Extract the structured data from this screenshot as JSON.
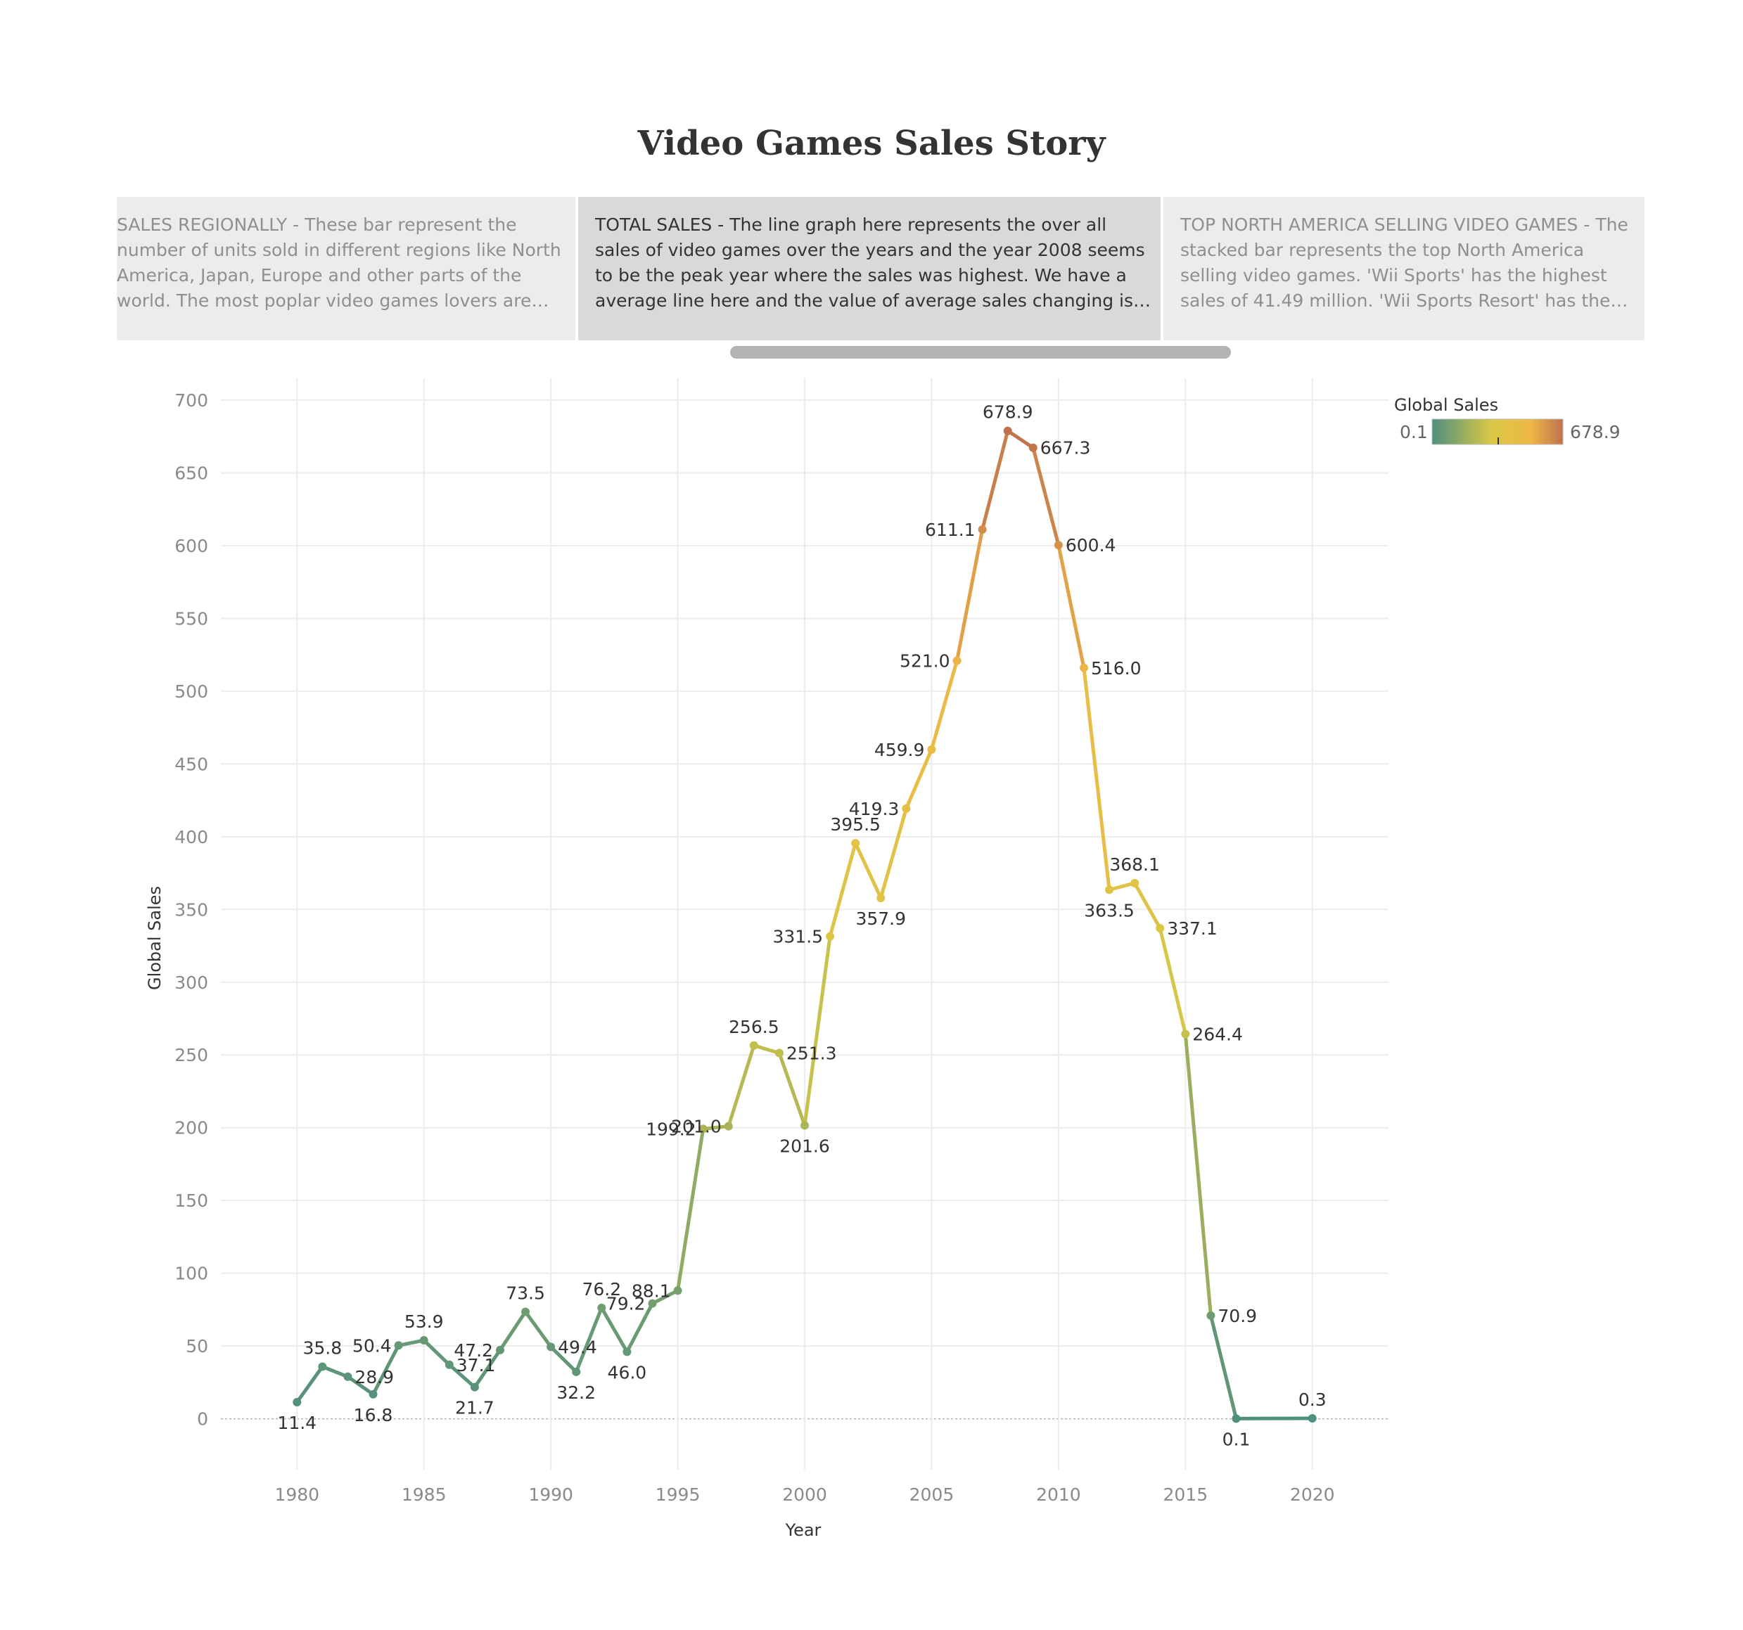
{
  "title": "Video Games Sales Story",
  "story_points": [
    {
      "text": "SALES REGIONALLY - These bar represent the number of units sold in different regions like North America, Japan, Europe and other parts of the world. The most poplar video games lovers are fro..",
      "active": false
    },
    {
      "text": "TOTAL SALES - The line graph here represents the over all sales of video games over the years and the year 2008 seems to be the peak year where the sales was highest. We have a average line here and the value of average sales changing is shown by t..",
      "active": true
    },
    {
      "text": "TOP NORTH AMERICA SELLING VIDEO GAMES - The stacked bar represents the top North America selling video games. 'Wii Sports' has the highest sales of 41.49 million. 'Wii Sports Resort' has the lowest sale..",
      "active": false
    }
  ],
  "legend": {
    "title": "Global Sales",
    "min_label": "0.1",
    "max_label": "678.9",
    "colors": [
      "#4e8f7d",
      "#d9c846",
      "#efb846",
      "#c0714c"
    ]
  },
  "chart_data": {
    "type": "line",
    "title": "",
    "xlabel": "Year",
    "ylabel": "Global Sales",
    "xlim": [
      1977,
      2023
    ],
    "ylim": [
      -35,
      715
    ],
    "xticks": [
      1980,
      1985,
      1990,
      1995,
      2000,
      2005,
      2010,
      2015,
      2020
    ],
    "yticks": [
      0,
      50,
      100,
      150,
      200,
      250,
      300,
      350,
      400,
      450,
      500,
      550,
      600,
      650,
      700
    ],
    "grid": true,
    "legend_position": "top-right",
    "series": [
      {
        "x": [
          1980,
          1981,
          1982,
          1983,
          1984,
          1985,
          1986,
          1987,
          1988,
          1989,
          1990,
          1991,
          1992,
          1993,
          1994,
          1995,
          1996,
          1997,
          1998,
          1999,
          2000,
          2001,
          2002,
          2003,
          2004,
          2005,
          2006,
          2007,
          2008,
          2009,
          2010,
          2011,
          2012,
          2013,
          2014,
          2015,
          2016,
          2017,
          2020
        ],
        "values": [
          11.4,
          35.8,
          28.9,
          16.8,
          50.4,
          53.9,
          37.1,
          21.7,
          47.2,
          73.5,
          49.4,
          32.2,
          76.2,
          46.0,
          79.2,
          88.1,
          199.2,
          201.0,
          256.5,
          251.3,
          201.6,
          331.5,
          395.5,
          357.9,
          419.3,
          459.9,
          521.0,
          611.1,
          678.9,
          667.3,
          600.4,
          516.0,
          363.5,
          368.1,
          337.1,
          264.4,
          70.9,
          0.1,
          0.3
        ],
        "labels": [
          "11.4",
          "35.8",
          "28.9",
          "16.8",
          "50.4",
          "53.9",
          "37.1",
          "21.7",
          "47.2",
          "73.5",
          "49.4",
          "32.2",
          "76.2",
          "46.0",
          "79.2",
          "88.1",
          "199.2",
          "201.0",
          "256.5",
          "251.3",
          "201.6",
          "331.5",
          "395.5",
          "357.9",
          "419.3",
          "459.9",
          "521.0",
          "611.1",
          "678.9",
          "667.3",
          "600.4",
          "516.0",
          "363.5",
          "368.1",
          "337.1",
          "264.4",
          "70.9",
          "0.1",
          "0.3"
        ]
      }
    ]
  }
}
